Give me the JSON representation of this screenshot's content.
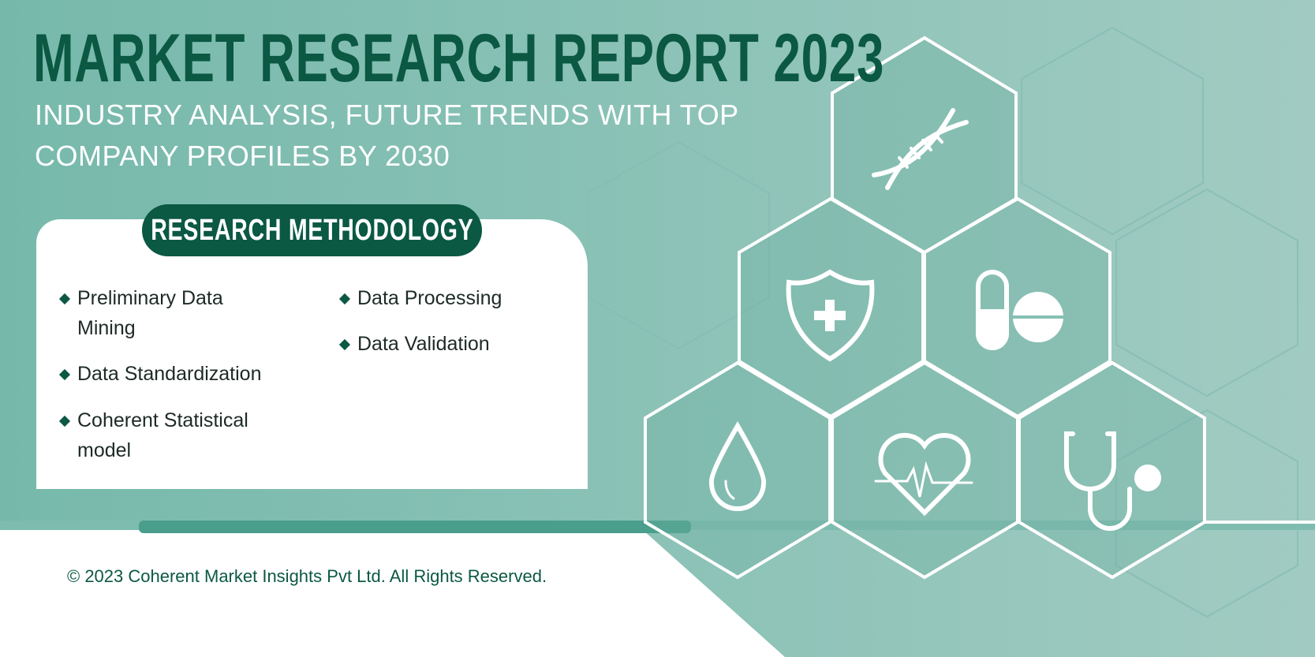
{
  "header": {
    "title": "MARKET RESEARCH REPORT 2023",
    "subtitle_line1": "INDUSTRY ANALYSIS, FUTURE TRENDS WITH TOP",
    "subtitle_line2": "COMPANY PROFILES BY 2030"
  },
  "methodology": {
    "heading": "RESEARCH METHODOLOGY",
    "items": [
      {
        "line1": "Preliminary Data",
        "line2": "Mining"
      },
      {
        "line1": "Data Standardization",
        "line2": ""
      },
      {
        "line1": "Coherent Statistical",
        "line2": "model"
      },
      {
        "line1": "Data Processing",
        "line2": ""
      },
      {
        "line1": "Data Validation",
        "line2": ""
      }
    ]
  },
  "icons": [
    "dna-icon",
    "shield-plus-icon",
    "pill-tablet-icon",
    "drop-icon",
    "heart-pulse-icon",
    "stethoscope-icon"
  ],
  "footer": {
    "copyright": "© 2023 Coherent Market Insights Pvt Ltd. All Rights Reserved."
  },
  "colors": {
    "brand_dark_green": "#0b5843",
    "teal_background": "#86c0b4",
    "white": "#ffffff"
  }
}
